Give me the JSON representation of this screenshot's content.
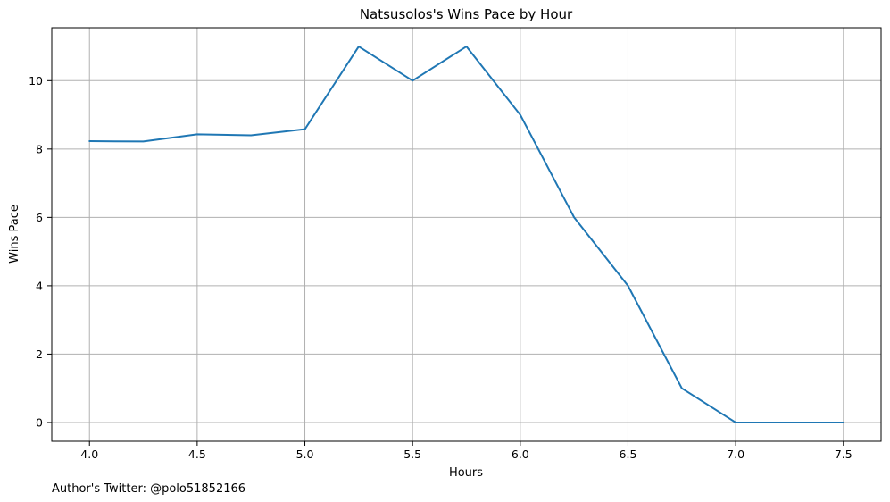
{
  "chart_data": {
    "type": "line",
    "title": "Natsusolos's Wins Pace by Hour",
    "xlabel": "Hours",
    "ylabel": "Wins Pace",
    "x": [
      4.0,
      4.25,
      4.5,
      4.75,
      5.0,
      5.25,
      5.5,
      5.75,
      6.0,
      6.25,
      6.5,
      6.75,
      7.0,
      7.25,
      7.5
    ],
    "series": [
      {
        "values": [
          8.23,
          8.22,
          8.43,
          8.4,
          8.58,
          11.0,
          10.0,
          11.0,
          9.0,
          6.0,
          4.0,
          1.0,
          0.0,
          0.0,
          0.0
        ],
        "color": "#1f77b4"
      }
    ],
    "xlim": [
      3.825,
      7.675
    ],
    "ylim": [
      -0.55,
      11.55
    ],
    "x_ticks": [
      "4.0",
      "4.5",
      "5.0",
      "5.5",
      "6.0",
      "6.5",
      "7.0",
      "7.5"
    ],
    "x_tick_values": [
      4.0,
      4.5,
      5.0,
      5.5,
      6.0,
      6.5,
      7.0,
      7.5
    ],
    "y_ticks": [
      "0",
      "2",
      "4",
      "6",
      "8",
      "10"
    ],
    "y_tick_values": [
      0,
      2,
      4,
      6,
      8,
      10
    ],
    "grid": true,
    "footnote": "Author's Twitter: @polo51852166"
  }
}
